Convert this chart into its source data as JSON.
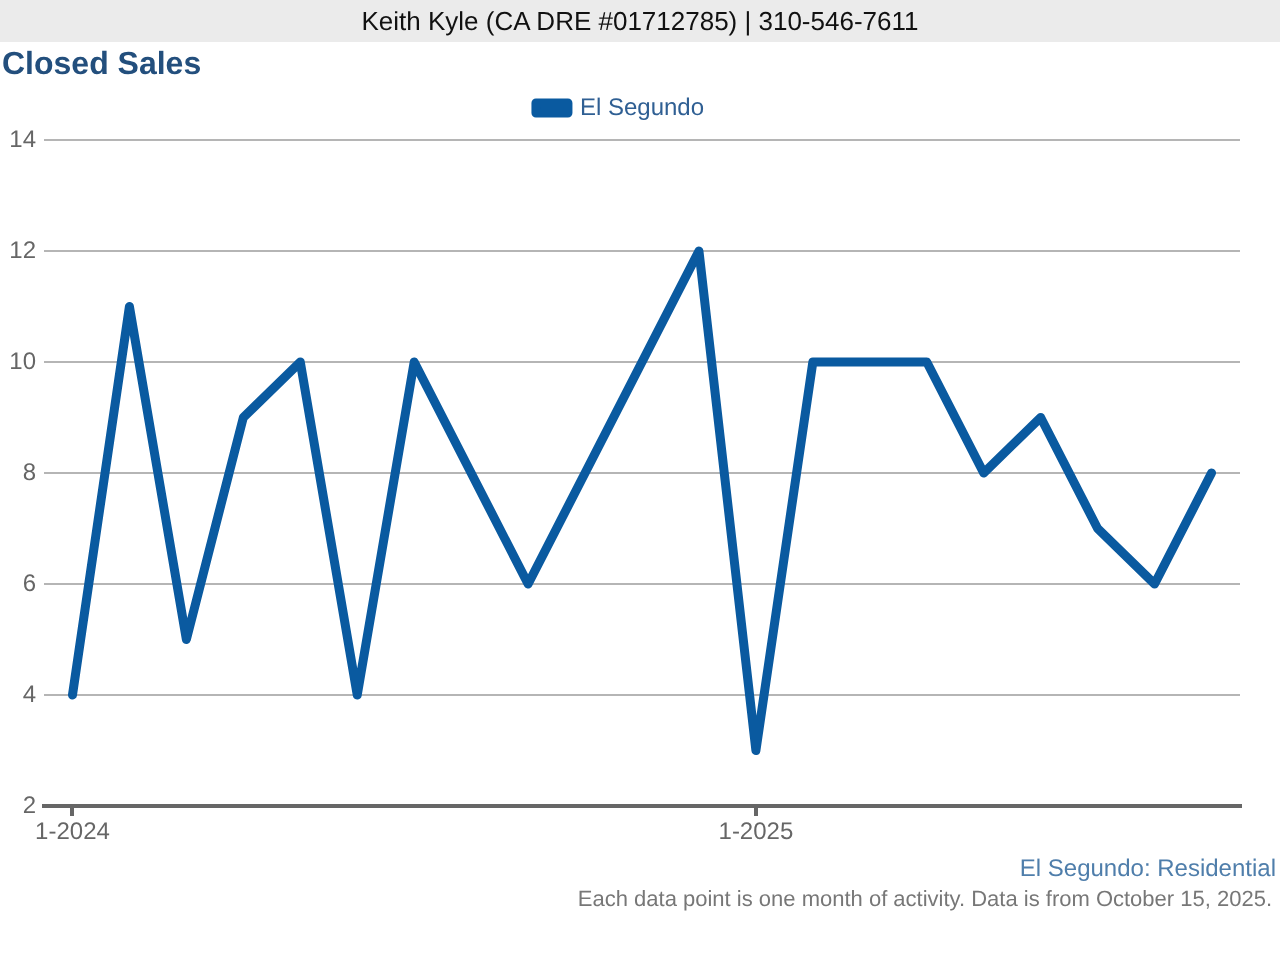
{
  "chart_data": {
    "type": "line",
    "title": "Closed Sales",
    "categories": [
      "1-2024",
      null,
      null,
      null,
      null,
      null,
      null,
      null,
      null,
      null,
      null,
      null,
      "1-2025",
      null,
      null,
      null,
      null,
      null,
      null,
      null,
      null
    ],
    "series": [
      {
        "name": "El Segundo",
        "color": "#0a5aa0",
        "values": [
          4,
          11,
          5,
          9,
          10,
          4,
          10,
          8,
          6,
          8,
          10,
          12,
          3,
          10,
          10,
          10,
          8,
          9,
          7,
          6,
          8
        ]
      }
    ],
    "ylim": [
      2,
      14
    ],
    "yticks": [
      2,
      4,
      6,
      8,
      10,
      12,
      14
    ],
    "grid": "y",
    "legend": "top",
    "marker": "none",
    "line_style": "solid",
    "annotations": [
      "Keith Kyle (CA DRE #01712785) | 310-546-7611",
      "El Segundo: Residential",
      "Each data point is one month of activity. Data is from October 15, 2025."
    ]
  }
}
